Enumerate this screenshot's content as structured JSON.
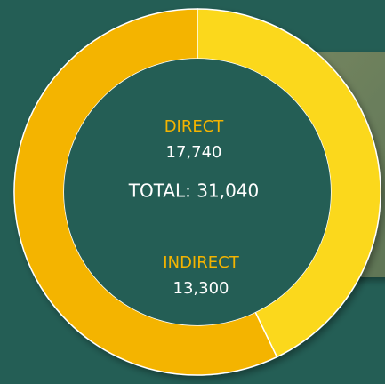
{
  "chart_data": {
    "type": "donut",
    "categories": [
      "DIRECT",
      "INDIRECT"
    ],
    "values": [
      17740,
      13300
    ],
    "value_labels": [
      "17,740",
      "13,300"
    ],
    "colors": [
      "#f4b400",
      "#fbd81e"
    ],
    "total_label": "TOTAL: 31,040"
  }
}
